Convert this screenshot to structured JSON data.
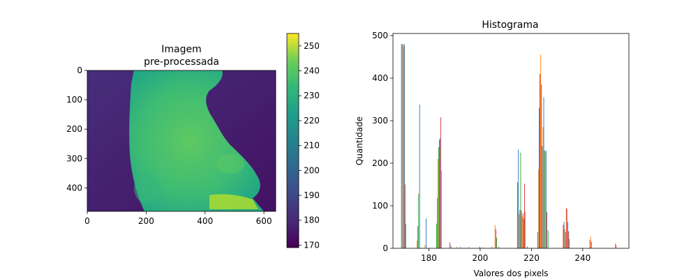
{
  "chart_data": [
    {
      "type": "heatmap",
      "title_line1": "Imagem",
      "title_line2": "pre-processada",
      "xlim": [
        0,
        640
      ],
      "ylim": [
        480,
        0
      ],
      "xticks": [
        0,
        200,
        400,
        600
      ],
      "yticks": [
        0,
        100,
        200,
        300,
        400
      ],
      "colormap": "viridis",
      "colorbar": {
        "range": [
          169,
          255
        ],
        "ticks": [
          170,
          180,
          190,
          200,
          210,
          220,
          230,
          240,
          250
        ]
      }
    },
    {
      "type": "bar",
      "title": "Histograma",
      "xlabel": "Valores dos pixels",
      "ylabel": "Quantidade",
      "xlim": [
        166,
        258
      ],
      "ylim": [
        0,
        505
      ],
      "xticks": [
        180,
        200,
        220,
        240
      ],
      "yticks": [
        0,
        100,
        200,
        300,
        400,
        500
      ],
      "series_colors": [
        "#1f77b4",
        "#ff7f0e",
        "#2ca02c",
        "#d62728"
      ],
      "bars": [
        {
          "x": 169.3,
          "y": 480,
          "c": 0
        },
        {
          "x": 169.6,
          "y": 480,
          "c": 1
        },
        {
          "x": 169.9,
          "y": 480,
          "c": 0
        },
        {
          "x": 170.2,
          "y": 475,
          "c": 1
        },
        {
          "x": 170.5,
          "y": 480,
          "c": 0
        },
        {
          "x": 170.7,
          "y": 150,
          "c": 3
        },
        {
          "x": 171.0,
          "y": 58,
          "c": 2
        },
        {
          "x": 175.4,
          "y": 18,
          "c": 1
        },
        {
          "x": 175.7,
          "y": 52,
          "c": 0
        },
        {
          "x": 176.0,
          "y": 128,
          "c": 2
        },
        {
          "x": 176.4,
          "y": 338,
          "c": 0
        },
        {
          "x": 178.5,
          "y": 8,
          "c": 1
        },
        {
          "x": 178.9,
          "y": 70,
          "c": 0
        },
        {
          "x": 183.0,
          "y": 58,
          "c": 2
        },
        {
          "x": 183.3,
          "y": 118,
          "c": 0
        },
        {
          "x": 183.5,
          "y": 210,
          "c": 1
        },
        {
          "x": 183.8,
          "y": 238,
          "c": 2
        },
        {
          "x": 184.1,
          "y": 255,
          "c": 0
        },
        {
          "x": 184.3,
          "y": 258,
          "c": 0
        },
        {
          "x": 184.6,
          "y": 308,
          "c": 3
        },
        {
          "x": 184.9,
          "y": 183,
          "c": 1
        },
        {
          "x": 188.2,
          "y": 14,
          "c": 3
        },
        {
          "x": 188.6,
          "y": 6,
          "c": 0
        },
        {
          "x": 191.0,
          "y": 4,
          "c": 1
        },
        {
          "x": 192.3,
          "y": 3,
          "c": 0
        },
        {
          "x": 195.5,
          "y": 3,
          "c": 2
        },
        {
          "x": 199.8,
          "y": 4,
          "c": 0
        },
        {
          "x": 201.0,
          "y": 3,
          "c": 1
        },
        {
          "x": 204.6,
          "y": 3,
          "c": 3
        },
        {
          "x": 205.8,
          "y": 55,
          "c": 1
        },
        {
          "x": 206.1,
          "y": 45,
          "c": 3
        },
        {
          "x": 206.4,
          "y": 25,
          "c": 2
        },
        {
          "x": 207.2,
          "y": 4,
          "c": 0
        },
        {
          "x": 214.6,
          "y": 155,
          "c": 0
        },
        {
          "x": 214.9,
          "y": 232,
          "c": 0
        },
        {
          "x": 215.2,
          "y": 80,
          "c": 1
        },
        {
          "x": 215.5,
          "y": 90,
          "c": 3
        },
        {
          "x": 215.8,
          "y": 225,
          "c": 2
        },
        {
          "x": 216.1,
          "y": 88,
          "c": 0
        },
        {
          "x": 216.4,
          "y": 75,
          "c": 1
        },
        {
          "x": 216.7,
          "y": 82,
          "c": 3
        },
        {
          "x": 217.0,
          "y": 70,
          "c": 2
        },
        {
          "x": 217.3,
          "y": 152,
          "c": 3
        },
        {
          "x": 217.6,
          "y": 85,
          "c": 1
        },
        {
          "x": 218.4,
          "y": 4,
          "c": 0
        },
        {
          "x": 222.4,
          "y": 38,
          "c": 0
        },
        {
          "x": 222.7,
          "y": 185,
          "c": 1
        },
        {
          "x": 223.0,
          "y": 330,
          "c": 0
        },
        {
          "x": 223.3,
          "y": 410,
          "c": 3
        },
        {
          "x": 223.6,
          "y": 455,
          "c": 1
        },
        {
          "x": 223.9,
          "y": 385,
          "c": 3
        },
        {
          "x": 224.2,
          "y": 240,
          "c": 0
        },
        {
          "x": 224.5,
          "y": 285,
          "c": 1
        },
        {
          "x": 224.8,
          "y": 355,
          "c": 0
        },
        {
          "x": 225.1,
          "y": 230,
          "c": 2
        },
        {
          "x": 225.4,
          "y": 228,
          "c": 1
        },
        {
          "x": 225.7,
          "y": 230,
          "c": 0
        },
        {
          "x": 226.0,
          "y": 85,
          "c": 3
        },
        {
          "x": 226.5,
          "y": 42,
          "c": 2
        },
        {
          "x": 232.4,
          "y": 55,
          "c": 3
        },
        {
          "x": 232.7,
          "y": 62,
          "c": 0
        },
        {
          "x": 233.0,
          "y": 45,
          "c": 1
        },
        {
          "x": 233.3,
          "y": 38,
          "c": 2
        },
        {
          "x": 233.6,
          "y": 95,
          "c": 3
        },
        {
          "x": 233.9,
          "y": 92,
          "c": 1
        },
        {
          "x": 234.2,
          "y": 62,
          "c": 0
        },
        {
          "x": 234.5,
          "y": 40,
          "c": 3
        },
        {
          "x": 234.8,
          "y": 22,
          "c": 2
        },
        {
          "x": 242.8,
          "y": 20,
          "c": 3
        },
        {
          "x": 243.1,
          "y": 28,
          "c": 1
        },
        {
          "x": 243.4,
          "y": 15,
          "c": 2
        },
        {
          "x": 252.7,
          "y": 12,
          "c": 1
        },
        {
          "x": 253.0,
          "y": 8,
          "c": 3
        }
      ]
    }
  ]
}
